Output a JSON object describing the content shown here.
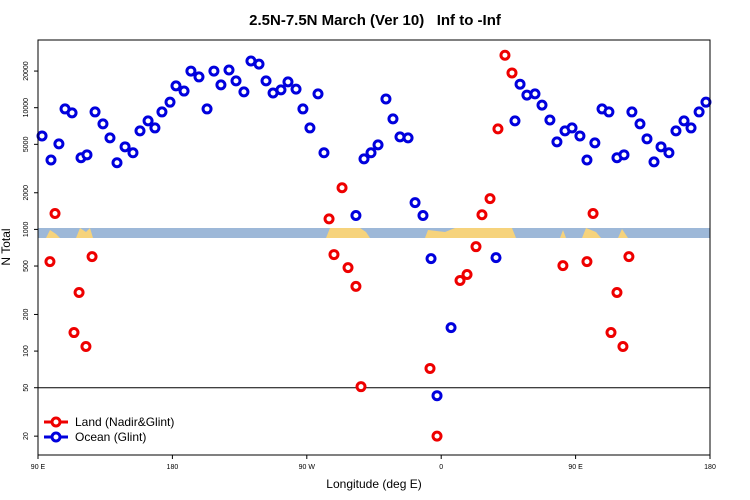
{
  "chart_data": {
    "type": "scatter",
    "title": "2.5N-7.5N March (Ver 10)   Inf to -Inf",
    "x_label": "Longitude (deg E)",
    "y_label": "N Total",
    "log_y": true,
    "legend": "bottom-left",
    "xlim": [
      90,
      540
    ],
    "ylim": [
      14,
      36000
    ],
    "xticks": [
      {
        "value": 90,
        "label": "90 E"
      },
      180,
      {
        "value": 270,
        "label": "90 W"
      },
      {
        "value": 360,
        "label": "0"
      },
      {
        "value": 450,
        "label": "90 E"
      },
      {
        "value": 540,
        "label": "180"
      }
    ],
    "yticks": [
      20,
      50,
      100,
      200,
      500,
      1000,
      2000,
      5000,
      10000,
      20000
    ],
    "hline": 50,
    "series": [
      {
        "name": "Land (Nadir&Glint)",
        "color": "#ee0000",
        "x": [
          98.0,
          101.4,
          114.1,
          117.5,
          122.1,
          126.2,
          284.9,
          288.2,
          293.6,
          297.6,
          302.9,
          306.3,
          352.5,
          357.2,
          372.6,
          377.3,
          383.3,
          387.3,
          392.7,
          398.0,
          402.7,
          407.4,
          441.5,
          457.6,
          461.7,
          473.7,
          477.7,
          481.7,
          485.7
        ],
        "values": [
          543,
          1350,
          142,
          303,
          109,
          597,
          1220,
          621,
          2200,
          485,
          340,
          51,
          72,
          20,
          380,
          426,
          721,
          1320,
          1790,
          6700,
          27000,
          19300,
          504,
          543,
          1350,
          142,
          303,
          109,
          597
        ]
      },
      {
        "name": "Ocean (Glint)",
        "color": "#0000dd",
        "x": [
          92.7,
          98.7,
          104.0,
          108.1,
          112.8,
          118.8,
          122.8,
          128.2,
          133.5,
          138.2,
          142.9,
          148.3,
          153.6,
          158.3,
          163.7,
          168.3,
          173.0,
          178.4,
          182.4,
          187.8,
          192.4,
          197.8,
          203.2,
          207.8,
          212.5,
          217.9,
          222.6,
          227.9,
          232.6,
          238.0,
          242.7,
          247.4,
          252.7,
          257.4,
          262.8,
          267.4,
          272.1,
          277.5,
          281.5,
          302.9,
          308.3,
          313.0,
          317.7,
          323.0,
          327.7,
          332.4,
          337.8,
          342.5,
          347.8,
          353.2,
          357.2,
          366.6,
          396.7,
          409.4,
          412.8,
          417.4,
          422.8,
          427.5,
          432.8,
          437.5,
          442.9,
          447.6,
          452.9,
          457.6,
          462.9,
          467.7,
          472.3,
          477.7,
          482.4,
          487.7,
          493.1,
          497.8,
          502.5,
          507.2,
          512.5,
          517.2,
          522.6,
          527.3,
          532.7,
          537.3
        ],
        "values": [
          5860,
          3720,
          5040,
          9770,
          9060,
          3880,
          4100,
          9230,
          7360,
          5650,
          3530,
          4770,
          4260,
          6450,
          7790,
          6820,
          9230,
          11100,
          15100,
          13700,
          20000,
          17900,
          9770,
          20000,
          15400,
          20400,
          16600,
          13500,
          24200,
          22800,
          16600,
          13200,
          14000,
          16300,
          14200,
          9770,
          6820,
          13000,
          4260,
          1300,
          3800,
          4260,
          4950,
          11800,
          8090,
          5760,
          5650,
          1660,
          1300,
          575,
          43,
          156,
          586,
          7790,
          15600,
          12700,
          13000,
          10500,
          7930,
          5240,
          6450,
          6820,
          5860,
          3720,
          5140,
          9770,
          9230,
          3880,
          4100,
          9230,
          7360,
          5550,
          3590,
          4770,
          4260,
          6450,
          7790,
          6820,
          9230,
          11100
        ]
      }
    ]
  }
}
